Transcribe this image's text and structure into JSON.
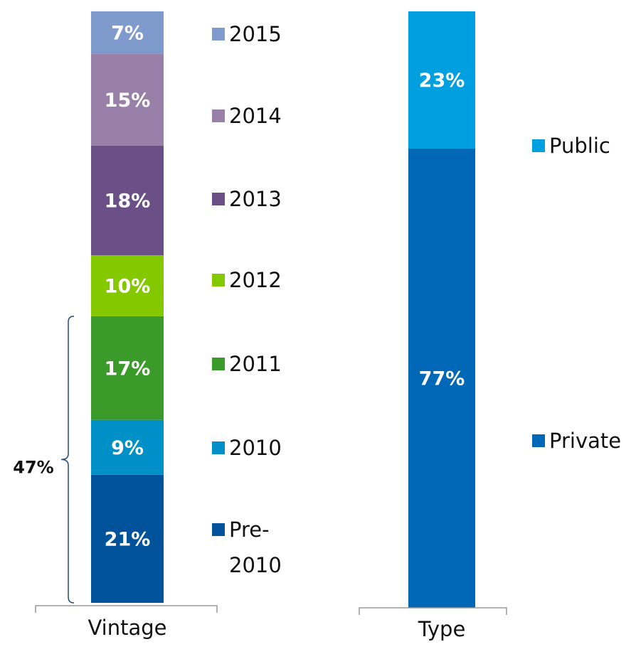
{
  "chart_data": [
    {
      "type": "stacked_bar",
      "categories": [
        "Vintage"
      ],
      "ylim": [
        0,
        97
      ],
      "annotation": {
        "text": "47%"
      },
      "series": [
        {
          "name": "Pre-2010",
          "color": "#00539b",
          "values": [
            21
          ],
          "value_labels": [
            "21%"
          ]
        },
        {
          "name": "2010",
          "color": "#0090c8",
          "values": [
            9
          ],
          "value_labels": [
            "9%"
          ]
        },
        {
          "name": "2011",
          "color": "#3a9a2a",
          "values": [
            17
          ],
          "value_labels": [
            "17%"
          ]
        },
        {
          "name": "2012",
          "color": "#84c800",
          "values": [
            10
          ],
          "value_labels": [
            "10%"
          ]
        },
        {
          "name": "2013",
          "color": "#6b5088",
          "values": [
            18
          ],
          "value_labels": [
            "18%"
          ]
        },
        {
          "name": "2014",
          "color": "#9880a8",
          "values": [
            15
          ],
          "value_labels": [
            "15%"
          ]
        },
        {
          "name": "2015",
          "color": "#7f9bcd",
          "values": [
            7
          ],
          "value_labels": [
            "7%"
          ]
        }
      ]
    },
    {
      "type": "stacked_bar",
      "categories": [
        "Type"
      ],
      "ylim": [
        0,
        100
      ],
      "series": [
        {
          "name": "Private",
          "color": "#0068b6",
          "values": [
            77
          ],
          "value_labels": [
            "77%"
          ]
        },
        {
          "name": "Public",
          "color": "#00a0e0",
          "values": [
            23
          ],
          "value_labels": [
            "23%"
          ]
        }
      ]
    }
  ]
}
